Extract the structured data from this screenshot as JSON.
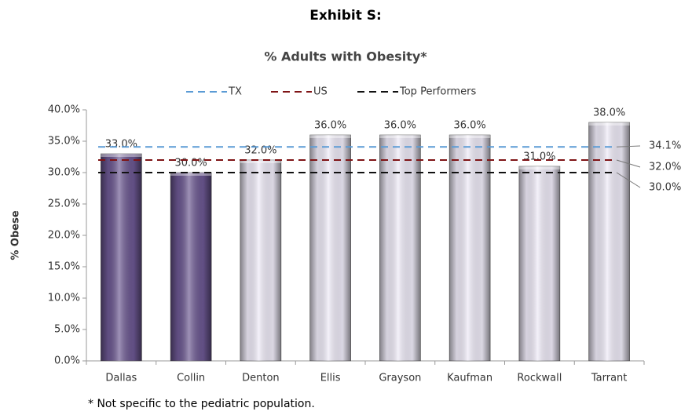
{
  "chart_data": {
    "type": "bar",
    "title": "Exhibit S:",
    "subtitle": "% Adults with Obesity*",
    "y_label": "% Obese",
    "footnote": "* Not specific to the pediatric population.",
    "categories": [
      "Dallas",
      "Collin",
      "Denton",
      "Ellis",
      "Grayson",
      "Kaufman",
      "Rockwall",
      "Tarrant"
    ],
    "values": [
      33,
      30,
      32,
      36,
      36,
      36,
      31,
      38
    ],
    "value_labels": [
      "33.0%",
      "30.0%",
      "32.0%",
      "36.0%",
      "36.0%",
      "36.0%",
      "31.0%",
      "38.0%"
    ],
    "colors": [
      "#6a5690",
      "#6a5690",
      "#eeeaf7",
      "#eeeaf7",
      "#eeeaf7",
      "#eeeaf7",
      "#eeeaf7",
      "#eeeaf7"
    ],
    "reference_lines": [
      {
        "name": "TX",
        "color": "#5b9bd5",
        "value": 34.1,
        "value_label": "34.1%"
      },
      {
        "name": "US",
        "color": "#7f1416",
        "value": 32,
        "value_label": "32.0%"
      },
      {
        "name": "Top Performers",
        "color": "#111111",
        "value": 30,
        "value_label": "30.0%"
      }
    ],
    "ylim": [
      0,
      40
    ],
    "yticks": [
      {
        "value": 0,
        "label": "0.0%"
      },
      {
        "value": 5,
        "label": "5.0%"
      },
      {
        "value": 10,
        "label": "10.0%"
      },
      {
        "value": 15,
        "label": "15.0%"
      },
      {
        "value": 20,
        "label": "20.0%"
      },
      {
        "value": 25,
        "label": "25.0%"
      },
      {
        "value": 30,
        "label": "30.0%"
      },
      {
        "value": 35,
        "label": "35.0%"
      },
      {
        "value": 40,
        "label": "40.0%"
      }
    ],
    "legend": "top"
  }
}
